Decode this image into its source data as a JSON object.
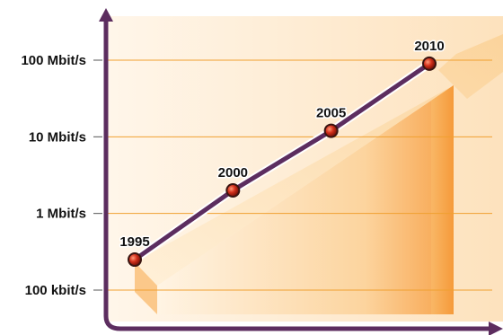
{
  "chart_data": {
    "type": "line",
    "title": "",
    "xlabel": "",
    "ylabel": "",
    "y_scale": "log",
    "y_ticks": [
      {
        "value": 100000,
        "label": "100 kbit/s"
      },
      {
        "value": 1000000,
        "label": "1 Mbit/s"
      },
      {
        "value": 10000000,
        "label": "10 Mbit/s"
      },
      {
        "value": 100000000,
        "label": "100 Mbit/s"
      }
    ],
    "xlim": [
      1995,
      2010
    ],
    "ylim": [
      100000,
      100000000
    ],
    "series": [
      {
        "x": [
          1995,
          2000,
          2005,
          2010
        ],
        "y": [
          250000,
          2000000,
          12000000,
          90000000
        ],
        "point_labels": [
          "1995",
          "2000",
          "2005",
          "2010"
        ]
      }
    ],
    "grid": true,
    "colors": {
      "line": "#5c2d5f",
      "axis": "#5c2d5f",
      "marker": "#d3301b",
      "gridline": "#f0a030",
      "band_light": "#fde7c8",
      "band_dark": "#f7a24a"
    }
  }
}
